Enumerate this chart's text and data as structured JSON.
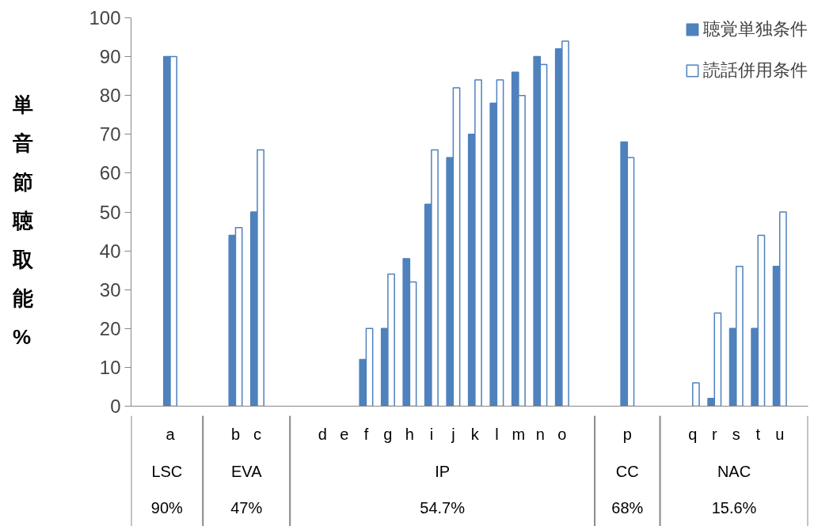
{
  "chart_data": {
    "type": "bar",
    "ylabel": "単音節聴取能 %",
    "categories": [
      "a",
      null,
      null,
      "b",
      "c",
      null,
      null,
      "d",
      "e",
      "f",
      "g",
      "h",
      "i",
      "j",
      "k",
      "l",
      "m",
      "n",
      "o",
      null,
      null,
      "p",
      null,
      null,
      "q",
      "r",
      "s",
      "t",
      "u"
    ],
    "series": [
      {
        "name": "聴覚単独条件",
        "color": "#4f81bd",
        "values": [
          90,
          null,
          null,
          44,
          50,
          null,
          null,
          null,
          null,
          12,
          20,
          38,
          52,
          64,
          70,
          78,
          86,
          90,
          92,
          null,
          null,
          68,
          null,
          null,
          null,
          2,
          20,
          20,
          36
        ]
      },
      {
        "name": "読話併用条件",
        "color": "#ffffff",
        "values": [
          90,
          null,
          null,
          46,
          66,
          null,
          null,
          null,
          null,
          20,
          34,
          32,
          66,
          82,
          84,
          84,
          80,
          88,
          94,
          null,
          null,
          64,
          null,
          null,
          6,
          24,
          36,
          44,
          50
        ]
      }
    ],
    "ylim": [
      0,
      100
    ],
    "yticks": [
      0,
      10,
      20,
      30,
      40,
      50,
      60,
      70,
      80,
      90,
      100
    ],
    "grid": false,
    "legend": "top right",
    "annotations": [
      "LSC",
      "EVA",
      "IP",
      "CC",
      "NAC",
      "90%",
      "47%",
      "54.7%",
      "68%",
      "15.6%"
    ]
  }
}
